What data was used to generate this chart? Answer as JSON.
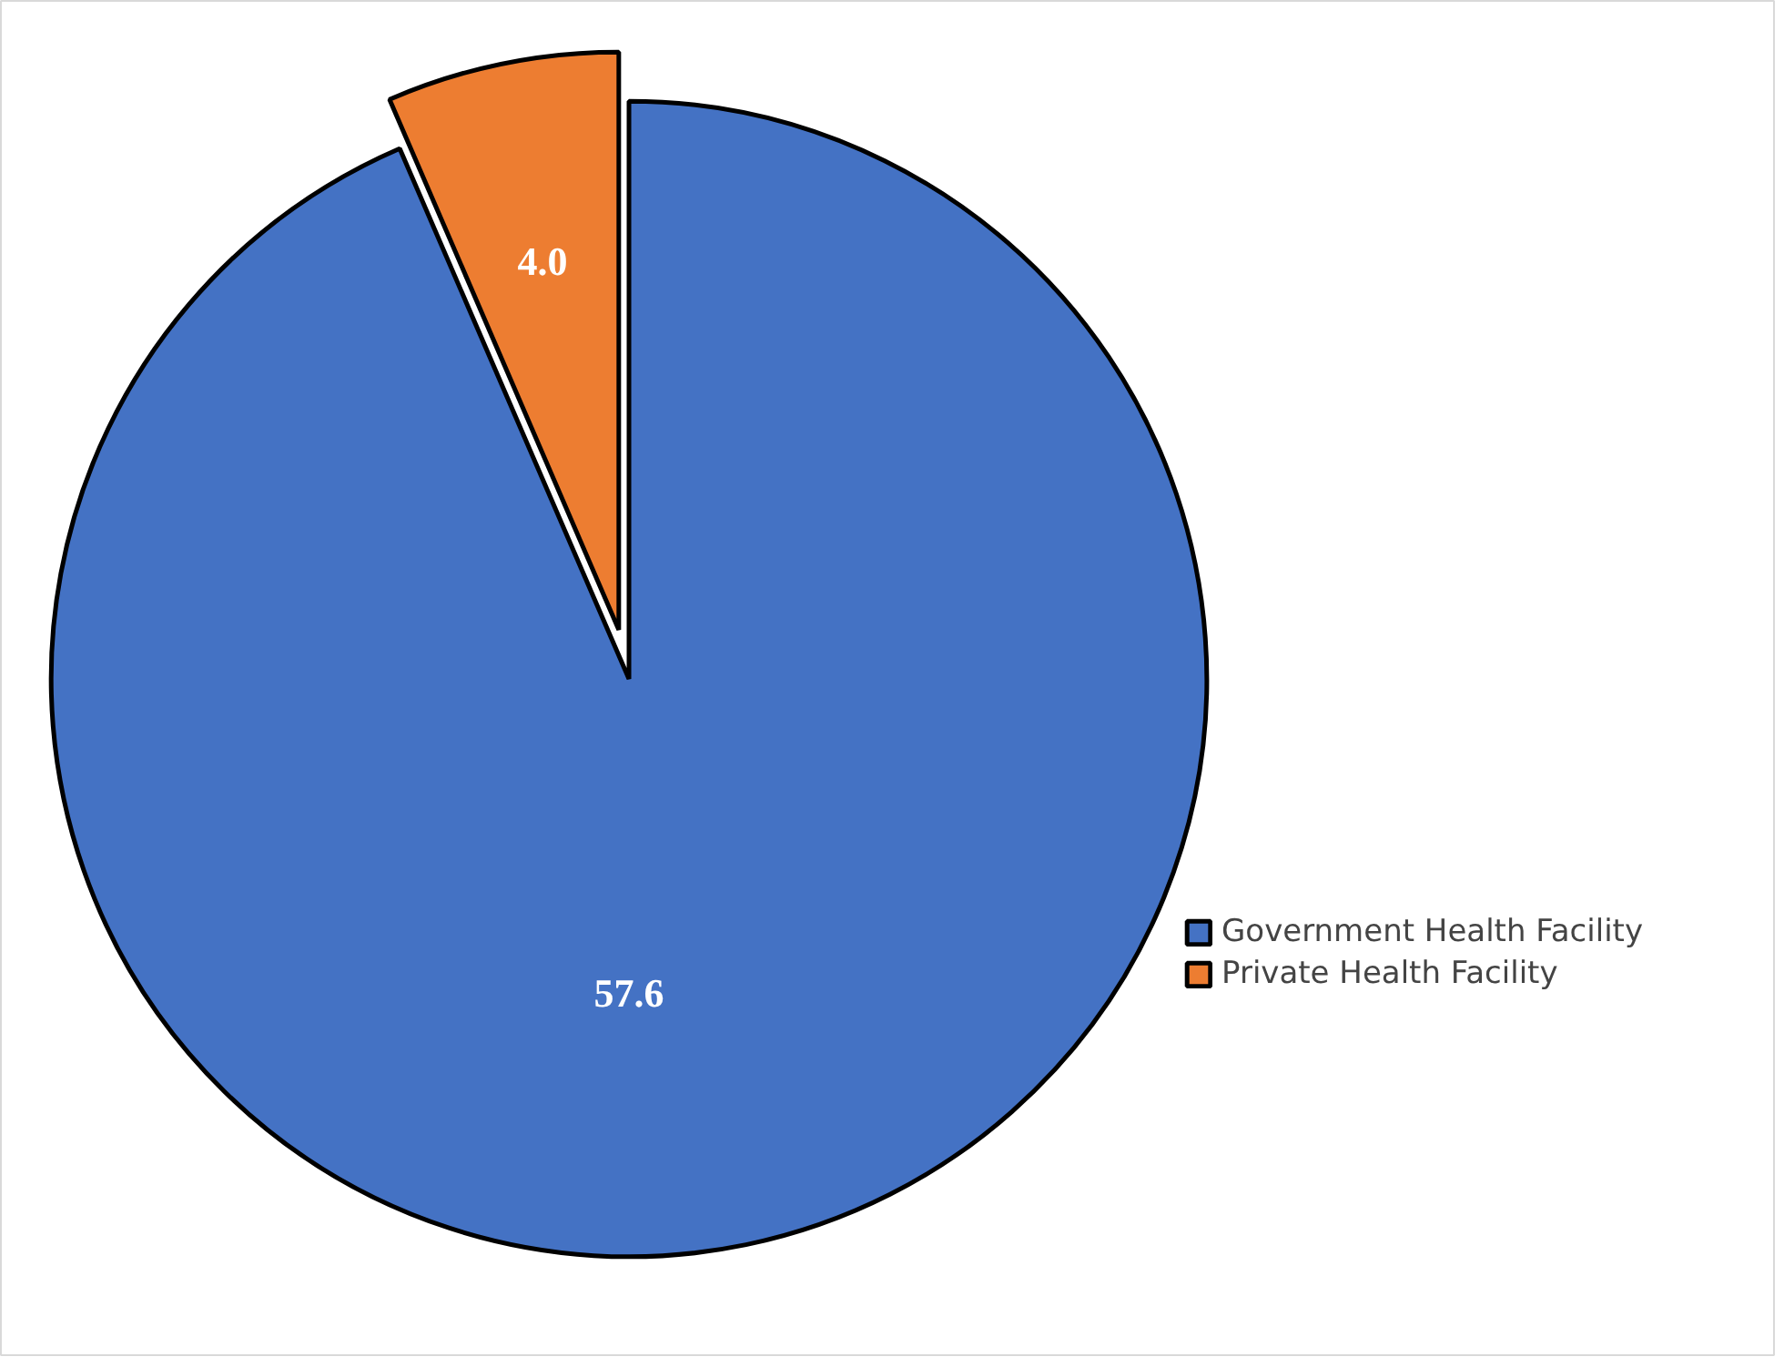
{
  "chart_data": {
    "type": "pie",
    "categories": [
      "Government Health Facility",
      "Private Health Facility"
    ],
    "values": [
      57.6,
      4.0
    ],
    "colors": [
      "#4472c4",
      "#ed7d31"
    ],
    "value_labels": [
      "57.6",
      "4.0"
    ],
    "legend": "right"
  }
}
